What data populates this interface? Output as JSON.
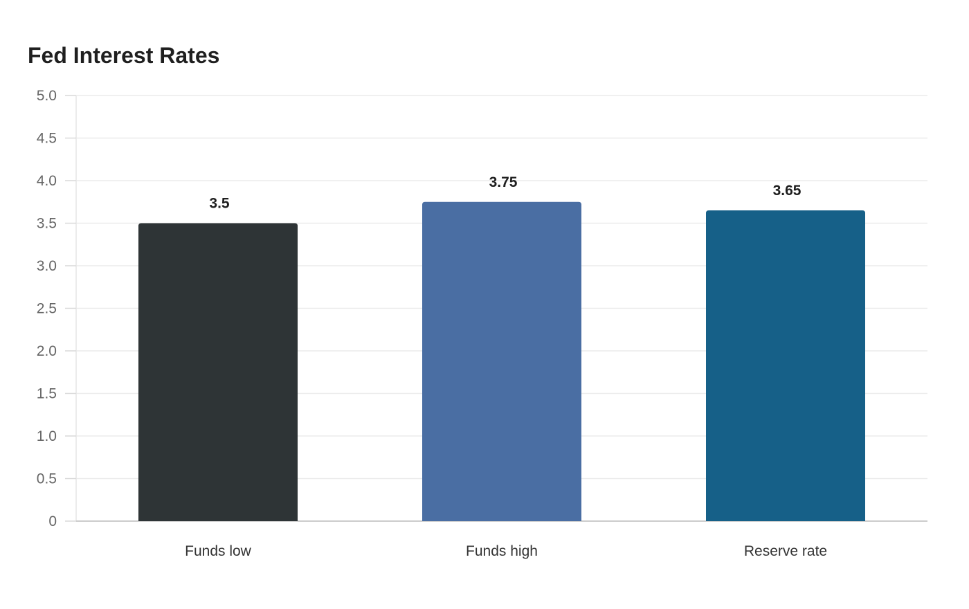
{
  "chart_data": {
    "type": "bar",
    "title": "Fed Interest Rates",
    "categories": [
      "Funds low",
      "Funds high",
      "Reserve rate"
    ],
    "values": [
      3.5,
      3.75,
      3.65
    ],
    "value_labels": [
      "3.5",
      "3.75",
      "3.65"
    ],
    "colors": [
      "#2e3436",
      "#4a6ea3",
      "#166088"
    ],
    "ylim": [
      0,
      5
    ],
    "yticks": [
      "0",
      "0.5",
      "1.0",
      "1.5",
      "2.0",
      "2.5",
      "3.0",
      "3.5",
      "4.0",
      "4.5",
      "5.0"
    ],
    "grid": true,
    "legend": "none",
    "xlabel": "",
    "ylabel": ""
  }
}
